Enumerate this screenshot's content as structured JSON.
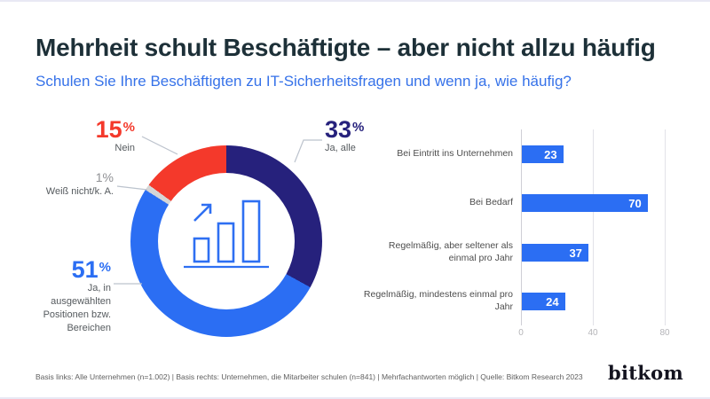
{
  "page": {
    "title": "Mehrheit schult Beschäftigte – aber nicht allzu häufig",
    "subtitle": "Schulen Sie Ihre Beschäftigten zu IT-Sicherheitsfragen und wenn ja, wie häufig?",
    "footer": "Basis links: Alle Unternehmen (n=1.002) | Basis rechts: Unternehmen, die Mitarbeiter schulen (n=841) | Mehrfachantworten möglich | Quelle: Bitkom Research 2023",
    "logo": "bitkom"
  },
  "colors": {
    "title_dark": "#1d3038",
    "subtitle_blue": "#3672e9",
    "navy": "#26217c",
    "blue": "#2b6ef3",
    "red": "#f4392b",
    "light_gray": "#d6d6d6",
    "label_gray": "#555a5e",
    "bar_blue": "#2b6ef3"
  },
  "donut": {
    "segments": [
      {
        "display": "33",
        "suffix": "%",
        "label": "Ja, alle",
        "value": 33,
        "color": "#26217c"
      },
      {
        "display": "51",
        "suffix": "%",
        "label": "Ja, in\nausgewählten\nPositionen bzw.\nBereichen",
        "value": 51,
        "color": "#2b6ef3"
      },
      {
        "display": "1",
        "suffix": "%",
        "label": "Weiß nicht/k. A.",
        "value": 1,
        "color": "#d6d6d6"
      },
      {
        "display": "15",
        "suffix": "%",
        "label": "Nein",
        "value": 15,
        "color": "#f4392b"
      }
    ]
  },
  "bar_chart": {
    "xmax": 80,
    "ticks": [
      "0",
      "40",
      "80"
    ],
    "rows": [
      {
        "label": "Bei Eintritt ins Unternehmen",
        "value": 23
      },
      {
        "label": "Bei Bedarf",
        "value": 70
      },
      {
        "label": "Regelmäßig, aber seltener als einmal pro Jahr",
        "value": 37
      },
      {
        "label": "Regelmäßig, mindestens einmal pro Jahr",
        "value": 24
      }
    ]
  },
  "chart_data": [
    {
      "type": "pie",
      "subtype": "donut",
      "title": "Schulen Sie Ihre Beschäftigten zu IT-Sicherheitsfragen?",
      "labels": [
        "Ja, alle",
        "Ja, in ausgewählten Positionen bzw. Bereichen",
        "Weiß nicht/k. A.",
        "Nein"
      ],
      "values": [
        33,
        51,
        1,
        15
      ],
      "unit": "%",
      "colors": [
        "#26217c",
        "#2b6ef3",
        "#d6d6d6",
        "#f4392b"
      ],
      "start_angle": "12 o'clock, clockwise"
    },
    {
      "type": "bar",
      "orientation": "horizontal",
      "title": "Wenn ja, wie häufig?",
      "categories": [
        "Bei Eintritt ins Unternehmen",
        "Bei Bedarf",
        "Regelmäßig, aber seltener als einmal pro Jahr",
        "Regelmäßig, mindestens einmal pro Jahr"
      ],
      "values": [
        23,
        70,
        37,
        24
      ],
      "xlabel": "",
      "ylabel": "",
      "xlim": [
        0,
        80
      ],
      "xticks": [
        0,
        40,
        80
      ],
      "grid": "vertical, light gray",
      "bar_color": "#2b6ef3",
      "value_labels": "white, inside bar right end"
    }
  ]
}
